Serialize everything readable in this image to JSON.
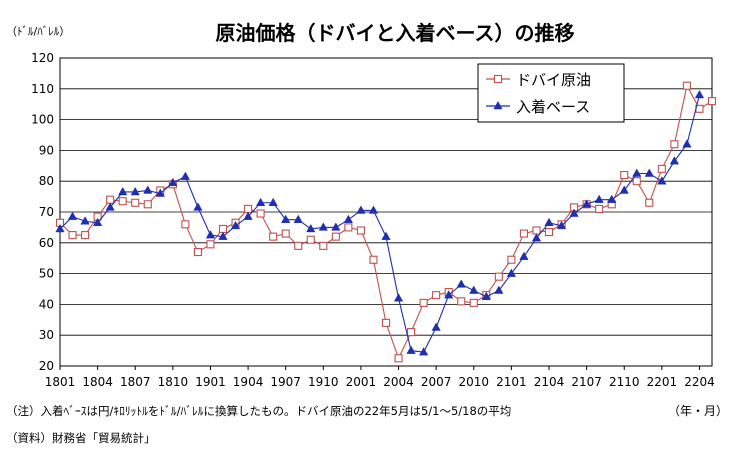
{
  "chart_data": {
    "type": "line",
    "title": "原油価格（ドバイと入着ベース）の推移",
    "ylabel": "（ﾄﾞﾙ/ﾊﾞﾚﾙ）",
    "xunit": "（年・月）",
    "ylim": [
      20,
      120
    ],
    "yticks": [
      20,
      30,
      40,
      50,
      60,
      70,
      80,
      90,
      100,
      110,
      120
    ],
    "grid": true,
    "legend_position": "top-right",
    "xtick_labels": [
      "1801",
      "1804",
      "1807",
      "1810",
      "1901",
      "1904",
      "1907",
      "1910",
      "2001",
      "2004",
      "2007",
      "2010",
      "2101",
      "2104",
      "2107",
      "2110",
      "2201",
      "2204"
    ],
    "x": [
      "1801",
      "1802",
      "1803",
      "1804",
      "1805",
      "1806",
      "1807",
      "1808",
      "1809",
      "1810",
      "1811",
      "1812",
      "1901",
      "1902",
      "1903",
      "1904",
      "1905",
      "1906",
      "1907",
      "1908",
      "1909",
      "1910",
      "1911",
      "1912",
      "2001",
      "2002",
      "2003",
      "2004",
      "2005",
      "2006",
      "2007",
      "2008",
      "2009",
      "2010",
      "2011",
      "2012",
      "2101",
      "2102",
      "2103",
      "2104",
      "2105",
      "2106",
      "2107",
      "2108",
      "2109",
      "2110",
      "2111",
      "2112",
      "2201",
      "2202",
      "2203",
      "2204",
      "2205"
    ],
    "series": [
      {
        "name": "ドバイ原油",
        "marker": "open-square",
        "color": "#c0504d",
        "values": [
          66.5,
          62.5,
          62.5,
          68.5,
          74,
          73.5,
          73,
          72.5,
          77,
          79,
          66,
          57,
          59.5,
          64.5,
          66.5,
          71,
          69.5,
          62,
          63,
          59,
          61,
          59,
          62,
          65,
          64,
          54.5,
          34,
          22.5,
          31,
          40.5,
          43,
          44,
          41,
          40.5,
          43,
          49,
          54.5,
          63,
          64,
          63.5,
          66,
          71.5,
          72.5,
          71,
          72.5,
          82,
          80,
          73,
          84,
          92,
          111,
          103.5,
          106
        ]
      },
      {
        "name": "入着ベース",
        "marker": "filled-triangle",
        "color": "#1f2fb0",
        "values": [
          64.5,
          68.5,
          67,
          66.5,
          71.5,
          76.5,
          76.5,
          77,
          76,
          79.5,
          81.5,
          71.5,
          62.5,
          62,
          65.5,
          68.5,
          73,
          73,
          67.5,
          67.5,
          64.5,
          65,
          65,
          67.5,
          70.5,
          70.5,
          62,
          42,
          25,
          24.5,
          32.5,
          43,
          46.5,
          44.5,
          42.5,
          44.5,
          50,
          55.5,
          61.5,
          66.5,
          65.5,
          69.5,
          72.5,
          74,
          74,
          77,
          82.5,
          82.5,
          80,
          86.5,
          92,
          108,
          null
        ]
      }
    ]
  },
  "notes": {
    "note1": "（注）入着ﾍﾞｰｽは円/ｷﾛﾘｯﾄﾙをﾄﾞﾙ/ﾊﾞﾚﾙに換算したもの。ドバイ原油の22年5月は5/1～5/18の平均",
    "source": "（資料）財務省「貿易統計」"
  }
}
